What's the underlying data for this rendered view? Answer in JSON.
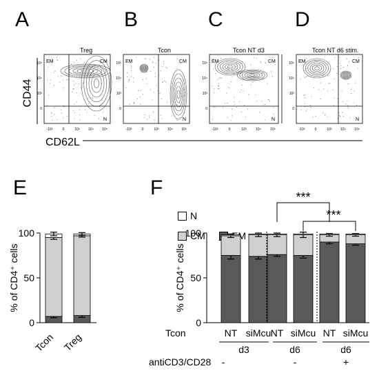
{
  "panels": {
    "A": "A",
    "B": "B",
    "C": "C",
    "D": "D",
    "E": "E",
    "F": "F"
  },
  "flow": {
    "titles": [
      "Treg",
      "Tcon",
      "Tcon NT d3",
      "Tcon NT d6 stim."
    ],
    "quadrant_labels": {
      "em": "EM",
      "cm": "CM",
      "n": "N"
    },
    "tick_labels": [
      "-10³",
      "0",
      "10³",
      "10⁴",
      "10⁵"
    ],
    "y_tick_labels": [
      "10⁵",
      "10⁴",
      "10³",
      "0"
    ],
    "y_axis_label": "CD44",
    "x_axis_label": "CD62L"
  },
  "legend": {
    "n": "N",
    "cm": "CM",
    "em": "EM",
    "colors": {
      "n": "#ffffff",
      "cm": "#d0d0d0",
      "em": "#595959"
    }
  },
  "chart_data": [
    {
      "panel": "E",
      "type": "bar",
      "stacked": true,
      "categories": [
        "Tcon",
        "Treg"
      ],
      "series": [
        {
          "name": "EM",
          "values": [
            7,
            8
          ],
          "err": [
            1.5,
            2
          ]
        },
        {
          "name": "CM",
          "values": [
            88,
            89
          ],
          "err": [
            2,
            1.5
          ]
        },
        {
          "name": "N",
          "values": [
            4,
            2
          ],
          "err": [
            2,
            1.5
          ]
        }
      ],
      "ylabel": "% of CD4⁺ cells",
      "ylim": [
        0,
        100
      ],
      "yticks": [
        0,
        50,
        100
      ]
    },
    {
      "panel": "F",
      "type": "bar",
      "stacked": true,
      "categories": [
        "NT",
        "siMcu",
        "NT",
        "siMcu",
        "NT",
        "siMcu"
      ],
      "series": [
        {
          "name": "EM",
          "values": [
            75,
            74,
            76,
            75,
            90,
            88
          ],
          "err": [
            4,
            3,
            2,
            3,
            2,
            1.5
          ]
        },
        {
          "name": "CM",
          "values": [
            22,
            24,
            22,
            23,
            8,
            10
          ],
          "err": [
            2,
            2,
            2,
            3,
            1.5,
            1.5
          ]
        },
        {
          "name": "N",
          "values": [
            1,
            1,
            1,
            1,
            1,
            1
          ],
          "err": [
            0,
            0,
            0,
            0,
            0,
            0
          ]
        }
      ],
      "ylabel": "% of CD4⁺ cells",
      "ylim": [
        0,
        100
      ],
      "yticks": [
        0,
        50,
        100
      ],
      "groups": [
        "d3",
        "d6",
        "d6"
      ],
      "row_label": "Tcon",
      "stim_label": "antiCD3/CD28",
      "stim_values": [
        "-",
        "-",
        "+"
      ],
      "significance": [
        "***",
        "***"
      ]
    }
  ]
}
